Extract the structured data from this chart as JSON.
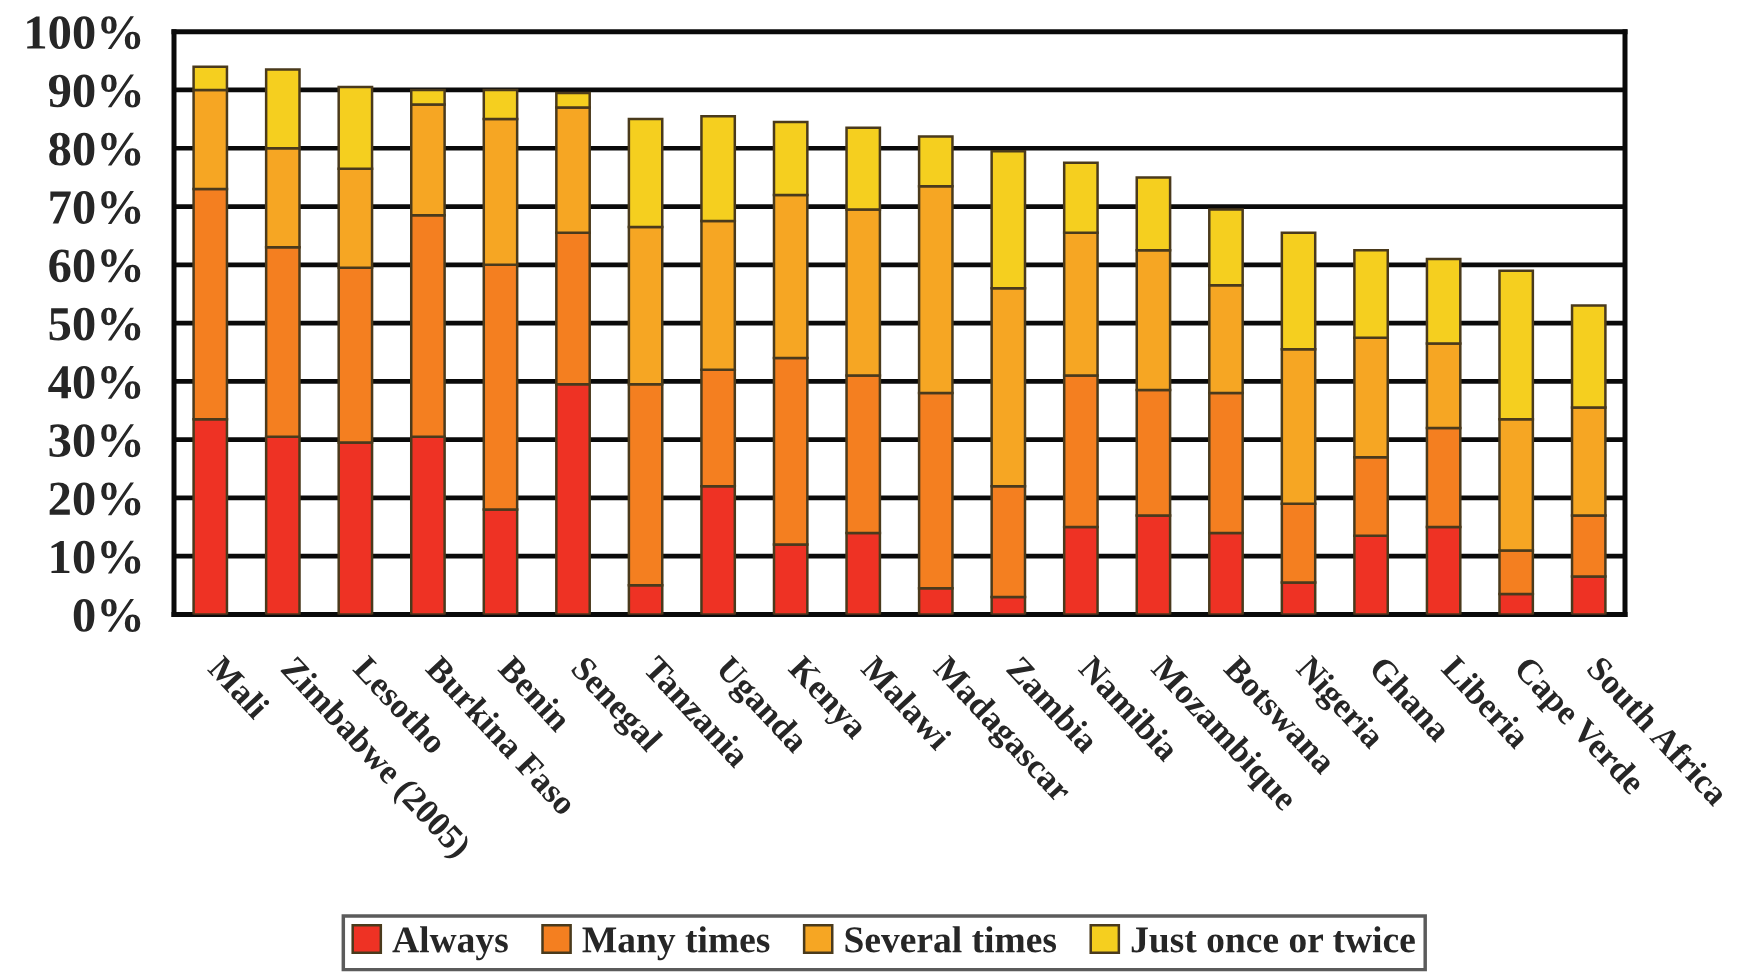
{
  "chart_data": {
    "type": "bar",
    "stacked": true,
    "categories": [
      "Mali",
      "Zimbabwe (2005)",
      "Lesotho",
      "Burkina Faso",
      "Benin",
      "Senegal",
      "Tanzania",
      "Uganda",
      "Kenya",
      "Malawi",
      "Madagascar",
      "Zambia",
      "Namibia",
      "Mozambique",
      "Botswana",
      "Nigeria",
      "Ghana",
      "Liberia",
      "Cape Verde",
      "South Africa"
    ],
    "series": [
      {
        "name": "Always",
        "color": "#ee3224",
        "values": [
          33.5,
          30.5,
          29.5,
          30.5,
          18,
          39.5,
          5,
          22,
          12,
          14,
          4.5,
          3,
          15,
          17,
          14,
          5.5,
          13.5,
          15,
          3.5,
          6.5
        ]
      },
      {
        "name": "Many times",
        "color": "#f47f20",
        "values": [
          39.5,
          32.5,
          30,
          38,
          42,
          26,
          34.5,
          20,
          32,
          27,
          33.5,
          19,
          26,
          21.5,
          24,
          13.5,
          13.5,
          17,
          7.5,
          10.5
        ]
      },
      {
        "name": "Several times",
        "color": "#f6a623",
        "values": [
          17,
          17,
          17,
          19,
          25,
          21.5,
          27,
          25.5,
          28,
          28.5,
          35.5,
          34,
          24.5,
          24,
          18.5,
          26.5,
          20.5,
          14.5,
          22.5,
          18.5
        ]
      },
      {
        "name": "Just once or twice",
        "color": "#f5cf1f",
        "values": [
          4,
          13.5,
          14,
          2.5,
          5,
          2.5,
          18.5,
          18,
          12.5,
          14,
          8.5,
          23.5,
          12,
          12.5,
          13,
          20,
          15,
          14.5,
          25.5,
          17.5
        ]
      }
    ],
    "ylim": [
      0,
      100
    ],
    "yticks": [
      {
        "value": 0,
        "label": "0%"
      },
      {
        "value": 10,
        "label": "10%"
      },
      {
        "value": 20,
        "label": "20%"
      },
      {
        "value": 30,
        "label": "30%"
      },
      {
        "value": 40,
        "label": "40%"
      },
      {
        "value": 50,
        "label": "50%"
      },
      {
        "value": 60,
        "label": "60%"
      },
      {
        "value": 70,
        "label": "70%"
      },
      {
        "value": 80,
        "label": "80%"
      },
      {
        "value": 90,
        "label": "90%"
      },
      {
        "value": 100,
        "label": "100%"
      }
    ],
    "grid": "y",
    "legend": "bottom"
  }
}
